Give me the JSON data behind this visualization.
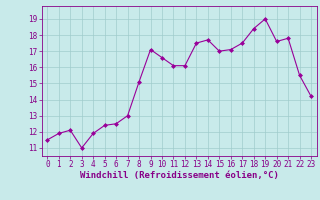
{
  "x": [
    0,
    1,
    2,
    3,
    4,
    5,
    6,
    7,
    8,
    9,
    10,
    11,
    12,
    13,
    14,
    15,
    16,
    17,
    18,
    19,
    20,
    21,
    22,
    23
  ],
  "y": [
    11.5,
    11.9,
    12.1,
    11.0,
    11.9,
    12.4,
    12.5,
    13.0,
    15.1,
    17.1,
    16.6,
    16.1,
    16.1,
    17.5,
    17.7,
    17.0,
    17.1,
    17.5,
    18.4,
    19.0,
    17.6,
    17.8,
    15.5,
    14.2
  ],
  "line_color": "#990099",
  "marker": "D",
  "marker_size": 2.0,
  "bg_color": "#c8eaea",
  "grid_color": "#a0cccc",
  "xlabel": "Windchill (Refroidissement éolien,°C)",
  "xlabel_color": "#880088",
  "tick_color": "#880088",
  "ylim": [
    10.5,
    19.8
  ],
  "xlim": [
    -0.5,
    23.5
  ],
  "yticks": [
    11,
    12,
    13,
    14,
    15,
    16,
    17,
    18,
    19
  ],
  "xticks": [
    0,
    1,
    2,
    3,
    4,
    5,
    6,
    7,
    8,
    9,
    10,
    11,
    12,
    13,
    14,
    15,
    16,
    17,
    18,
    19,
    20,
    21,
    22,
    23
  ],
  "tick_fontsize": 5.5,
  "xlabel_fontsize": 6.5,
  "linewidth": 0.8
}
